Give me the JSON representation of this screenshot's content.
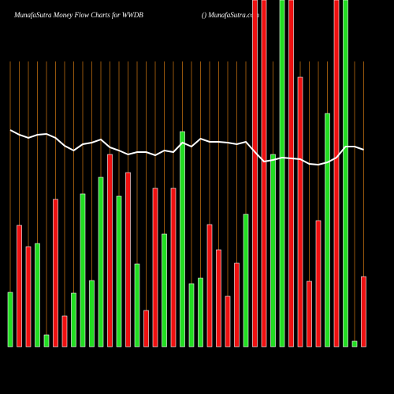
{
  "chart_data": {
    "type": "bar",
    "title": "MunafaSutra  Money Flow  Charts for WWDB",
    "subtitle": "() MunafaSutra.com",
    "ylim": [
      0,
      440
    ],
    "series": [
      {
        "name": "Money Flow",
        "values": [
          69,
          154,
          127,
          131,
          15,
          187,
          39,
          68,
          194,
          84,
          215,
          244,
          191,
          221,
          105,
          46,
          201,
          143,
          201,
          273,
          80,
          87,
          155,
          123,
          64,
          106,
          168,
          440,
          440,
          244,
          440,
          440,
          342,
          83,
          160,
          296,
          440,
          440,
          7,
          89
        ],
        "colors": [
          "#22dd22",
          "#ee1111",
          "#ee1111",
          "#22dd22",
          "#22dd22",
          "#ee1111",
          "#ee1111",
          "#22dd22",
          "#22dd22",
          "#22dd22",
          "#22dd22",
          "#ee1111",
          "#22dd22",
          "#ee1111",
          "#22dd22",
          "#ee1111",
          "#ee1111",
          "#22dd22",
          "#ee1111",
          "#22dd22",
          "#22dd22",
          "#22dd22",
          "#ee1111",
          "#ee1111",
          "#ee1111",
          "#ee1111",
          "#22dd22",
          "#ee1111",
          "#ee1111",
          "#22dd22",
          "#22dd22",
          "#ee1111",
          "#ee1111",
          "#ee1111",
          "#ee1111",
          "#22dd22",
          "#ee1111",
          "#22dd22",
          "#22dd22",
          "#ee1111"
        ]
      },
      {
        "name": "Trend",
        "color": "#ffffff",
        "values": [
          275,
          269,
          265,
          269,
          270,
          265,
          255,
          249,
          257,
          259,
          263,
          253,
          249,
          244,
          247,
          247,
          243,
          249,
          247,
          259,
          254,
          264,
          260,
          260,
          259,
          257,
          260,
          247,
          235,
          237,
          240,
          239,
          238,
          232,
          231,
          234,
          240,
          254,
          254,
          250
        ]
      }
    ]
  }
}
